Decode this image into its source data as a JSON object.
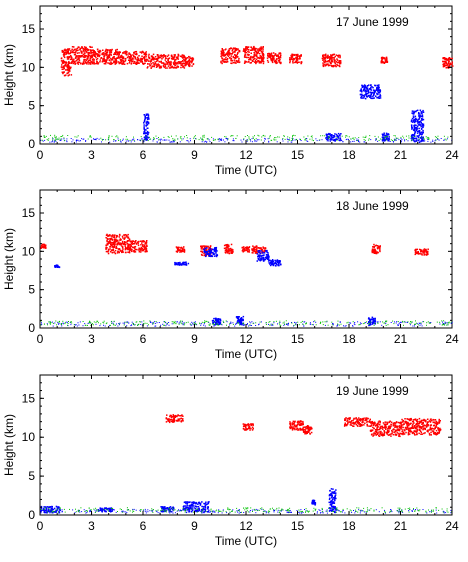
{
  "chart_data": [
    {
      "type": "scatter",
      "title": "17 June 1999",
      "xlabel": "Time (UTC)",
      "ylabel": "Height (km)",
      "xlim": [
        0,
        24
      ],
      "ylim": [
        0,
        18
      ],
      "xticks": [
        "0",
        "3",
        "6",
        "9",
        "12",
        "15",
        "18",
        "21",
        "24"
      ],
      "yticks": [
        "0",
        "5",
        "10",
        "15"
      ],
      "grid": false,
      "series": [
        {
          "color": "#ff0000",
          "clusters": [
            [
              1.2,
              1.8,
              9.0,
              12.5
            ],
            [
              1.8,
              3.0,
              10.5,
              12.8
            ],
            [
              3.0,
              4.5,
              10.5,
              12.5
            ],
            [
              4.5,
              6.2,
              10.5,
              12.2
            ],
            [
              6.2,
              8.4,
              10.0,
              11.8
            ],
            [
              8.4,
              8.9,
              10.2,
              11.5
            ],
            [
              10.5,
              11.6,
              10.6,
              12.6
            ],
            [
              11.8,
              13.0,
              10.6,
              12.8
            ],
            [
              13.2,
              14.0,
              10.6,
              12.0
            ],
            [
              14.5,
              15.2,
              10.6,
              11.8
            ],
            [
              16.4,
              17.5,
              10.2,
              11.8
            ],
            [
              19.8,
              20.2,
              10.6,
              11.4
            ],
            [
              23.4,
              24.0,
              10.0,
              11.4
            ]
          ]
        },
        {
          "color": "#0000ff",
          "clusters": [
            [
              6.0,
              6.3,
              0.5,
              4.0
            ],
            [
              18.6,
              19.8,
              6.0,
              7.8
            ],
            [
              16.6,
              17.5,
              0.5,
              1.5
            ],
            [
              19.9,
              20.3,
              0.5,
              1.5
            ],
            [
              21.6,
              22.3,
              0.3,
              4.5
            ],
            [
              0.0,
              24.0,
              0.3,
              0.8
            ]
          ]
        },
        {
          "color": "#00c000",
          "clusters": [
            [
              0.0,
              24.0,
              0.5,
              1.2
            ]
          ]
        }
      ]
    },
    {
      "type": "scatter",
      "title": "18 June 1999",
      "xlabel": "Time (UTC)",
      "ylabel": "Height (km)",
      "xlim": [
        0,
        24
      ],
      "ylim": [
        0,
        18
      ],
      "xticks": [
        "0",
        "3",
        "6",
        "9",
        "12",
        "15",
        "18",
        "21",
        "24"
      ],
      "yticks": [
        "0",
        "5",
        "10",
        "15"
      ],
      "grid": false,
      "series": [
        {
          "color": "#ff0000",
          "clusters": [
            [
              0.0,
              0.3,
              10.5,
              11.0
            ],
            [
              3.8,
              5.2,
              9.8,
              12.3
            ],
            [
              5.2,
              6.2,
              10.0,
              11.5
            ],
            [
              7.9,
              8.4,
              10.0,
              10.7
            ],
            [
              9.3,
              10.0,
              9.5,
              10.8
            ],
            [
              10.7,
              11.2,
              9.8,
              11.0
            ],
            [
              11.7,
              12.2,
              10.0,
              10.7
            ],
            [
              12.3,
              13.1,
              9.8,
              10.8
            ],
            [
              19.3,
              19.8,
              9.8,
              11.0
            ],
            [
              21.8,
              22.6,
              9.6,
              10.4
            ]
          ]
        },
        {
          "color": "#0000ff",
          "clusters": [
            [
              0.8,
              1.1,
              8.0,
              8.3
            ],
            [
              7.8,
              8.6,
              8.3,
              8.7
            ],
            [
              9.5,
              10.3,
              9.4,
              10.6
            ],
            [
              12.6,
              13.3,
              8.8,
              10.2
            ],
            [
              13.3,
              14.0,
              8.2,
              9.0
            ],
            [
              10.0,
              10.5,
              0.5,
              1.4
            ],
            [
              11.4,
              11.8,
              0.5,
              1.6
            ],
            [
              19.1,
              19.5,
              0.4,
              1.5
            ],
            [
              0.0,
              24.0,
              0.3,
              0.9
            ]
          ]
        },
        {
          "color": "#00c000",
          "clusters": [
            [
              0.0,
              24.0,
              0.4,
              1.0
            ]
          ]
        }
      ]
    },
    {
      "type": "scatter",
      "title": "19 June 1999",
      "xlabel": "Time (UTC)",
      "ylabel": "Height (km)",
      "xlim": [
        0,
        24
      ],
      "ylim": [
        0,
        18
      ],
      "xticks": [
        "0",
        "3",
        "6",
        "9",
        "12",
        "15",
        "18",
        "21",
        "24"
      ],
      "yticks": [
        "0",
        "5",
        "10",
        "15"
      ],
      "grid": false,
      "series": [
        {
          "color": "#ff0000",
          "clusters": [
            [
              7.3,
              8.3,
              12.0,
              13.0
            ],
            [
              11.8,
              12.4,
              11.0,
              11.8
            ],
            [
              14.5,
              15.3,
              11.0,
              12.2
            ],
            [
              15.3,
              15.8,
              10.5,
              11.6
            ],
            [
              17.7,
              19.2,
              11.5,
              12.6
            ],
            [
              19.2,
              21.0,
              10.2,
              12.2
            ],
            [
              21.0,
              23.3,
              10.4,
              12.5
            ]
          ]
        },
        {
          "color": "#0000ff",
          "clusters": [
            [
              0.0,
              1.1,
              0.4,
              1.2
            ],
            [
              3.3,
              4.2,
              0.5,
              1.0
            ],
            [
              7.0,
              7.8,
              0.5,
              1.2
            ],
            [
              8.3,
              9.8,
              0.5,
              1.8
            ],
            [
              15.8,
              16.0,
              1.4,
              2.0
            ],
            [
              16.8,
              17.2,
              0.5,
              3.5
            ],
            [
              0.0,
              24.0,
              0.3,
              0.8
            ]
          ]
        },
        {
          "color": "#00c000",
          "clusters": [
            [
              0.0,
              24.0,
              0.4,
              1.0
            ]
          ]
        }
      ]
    }
  ]
}
